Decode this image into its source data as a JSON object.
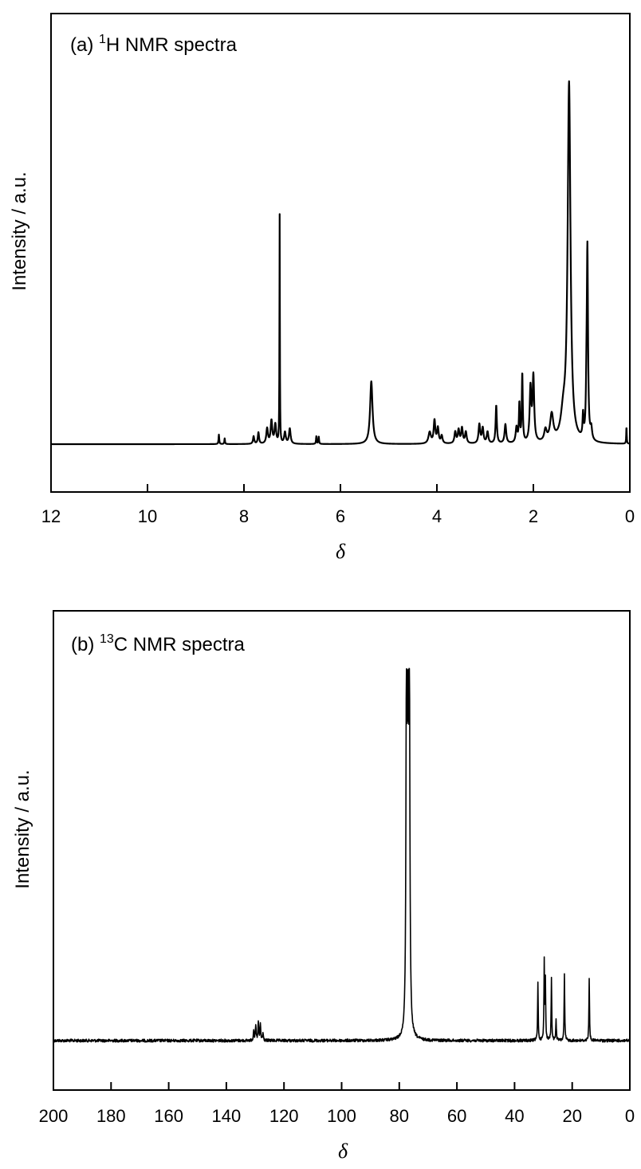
{
  "charts": {
    "h1": {
      "label_prefix": "(a) ",
      "label_sup": "1",
      "label_main": "H NMR spectra",
      "xlabel": "δ",
      "ylabel": "Intensity / a.u."
    },
    "c13": {
      "label_prefix": "(b) ",
      "label_sup": "13",
      "label_main": "C NMR spectra",
      "xlabel": "δ",
      "ylabel": "Intensity / a.u."
    }
  },
  "chart_data": [
    {
      "type": "line",
      "title": "(a) 1H NMR spectra",
      "xlabel": "δ",
      "ylabel": "Intensity / a.u.",
      "xlim": [
        12,
        0
      ],
      "x_reversed": true,
      "xticks": [
        12,
        10,
        8,
        6,
        4,
        2,
        0
      ],
      "y_ticks_shown": false,
      "grid": false,
      "series": [
        {
          "peaks": [
            {
              "x": 8.52,
              "height": 0.025,
              "width": 0.008
            },
            {
              "x": 8.4,
              "height": 0.015,
              "width": 0.008
            },
            {
              "x": 7.8,
              "height": 0.02,
              "width": 0.015
            },
            {
              "x": 7.7,
              "height": 0.03,
              "width": 0.015
            },
            {
              "x": 7.52,
              "height": 0.04,
              "width": 0.02
            },
            {
              "x": 7.43,
              "height": 0.06,
              "width": 0.02
            },
            {
              "x": 7.35,
              "height": 0.05,
              "width": 0.02
            },
            {
              "x": 7.26,
              "height": 0.6,
              "width": 0.005
            },
            {
              "x": 7.15,
              "height": 0.03,
              "width": 0.02
            },
            {
              "x": 7.05,
              "height": 0.04,
              "width": 0.02
            },
            {
              "x": 6.5,
              "height": 0.02,
              "width": 0.008
            },
            {
              "x": 6.45,
              "height": 0.02,
              "width": 0.008
            },
            {
              "x": 5.36,
              "height": 0.165,
              "width": 0.03
            },
            {
              "x": 4.15,
              "height": 0.03,
              "width": 0.03
            },
            {
              "x": 4.05,
              "height": 0.06,
              "width": 0.02
            },
            {
              "x": 3.98,
              "height": 0.04,
              "width": 0.02
            },
            {
              "x": 3.9,
              "height": 0.02,
              "width": 0.02
            },
            {
              "x": 3.62,
              "height": 0.03,
              "width": 0.02
            },
            {
              "x": 3.55,
              "height": 0.035,
              "width": 0.02
            },
            {
              "x": 3.48,
              "height": 0.04,
              "width": 0.02
            },
            {
              "x": 3.4,
              "height": 0.03,
              "width": 0.02
            },
            {
              "x": 3.12,
              "height": 0.05,
              "width": 0.02
            },
            {
              "x": 3.05,
              "height": 0.04,
              "width": 0.02
            },
            {
              "x": 2.95,
              "height": 0.03,
              "width": 0.02
            },
            {
              "x": 2.77,
              "height": 0.1,
              "width": 0.015
            },
            {
              "x": 2.58,
              "height": 0.05,
              "width": 0.02
            },
            {
              "x": 2.35,
              "height": 0.04,
              "width": 0.02
            },
            {
              "x": 2.29,
              "height": 0.1,
              "width": 0.012
            },
            {
              "x": 2.23,
              "height": 0.18,
              "width": 0.012
            },
            {
              "x": 2.06,
              "height": 0.14,
              "width": 0.02
            },
            {
              "x": 2.0,
              "height": 0.17,
              "width": 0.02
            },
            {
              "x": 1.75,
              "height": 0.03,
              "width": 0.03
            },
            {
              "x": 1.62,
              "height": 0.07,
              "width": 0.04
            },
            {
              "x": 1.38,
              "height": 0.06,
              "width": 0.06
            },
            {
              "x": 1.26,
              "height": 0.94,
              "width": 0.035
            },
            {
              "x": 0.97,
              "height": 0.06,
              "width": 0.012
            },
            {
              "x": 0.9,
              "height": 0.08,
              "width": 0.012
            },
            {
              "x": 0.88,
              "height": 0.5,
              "width": 0.015
            },
            {
              "x": 0.8,
              "height": 0.03,
              "width": 0.02
            },
            {
              "x": 0.07,
              "height": 0.045,
              "width": 0.006
            }
          ]
        }
      ]
    },
    {
      "type": "line",
      "title": "(b) 13C NMR spectra",
      "xlabel": "δ",
      "ylabel": "Intensity / a.u.",
      "xlim": [
        200,
        0
      ],
      "x_reversed": true,
      "xticks": [
        200,
        180,
        160,
        140,
        120,
        100,
        80,
        60,
        40,
        20,
        0
      ],
      "y_ticks_shown": false,
      "grid": false,
      "series": [
        {
          "peaks": [
            {
              "x": 130.5,
              "height": 0.03,
              "width": 0.15
            },
            {
              "x": 129.8,
              "height": 0.04,
              "width": 0.15
            },
            {
              "x": 128.9,
              "height": 0.05,
              "width": 0.15
            },
            {
              "x": 128.2,
              "height": 0.045,
              "width": 0.15
            },
            {
              "x": 127.3,
              "height": 0.02,
              "width": 0.15
            },
            {
              "x": 77.5,
              "height": 0.995,
              "width": 0.2
            },
            {
              "x": 77.0,
              "height": 0.975,
              "width": 0.2
            },
            {
              "x": 76.5,
              "height": 0.985,
              "width": 0.2
            },
            {
              "x": 31.9,
              "height": 0.16,
              "width": 0.12
            },
            {
              "x": 29.7,
              "height": 0.21,
              "width": 0.12
            },
            {
              "x": 29.3,
              "height": 0.16,
              "width": 0.12
            },
            {
              "x": 27.2,
              "height": 0.17,
              "width": 0.12
            },
            {
              "x": 25.6,
              "height": 0.06,
              "width": 0.12
            },
            {
              "x": 22.7,
              "height": 0.18,
              "width": 0.12
            },
            {
              "x": 14.1,
              "height": 0.17,
              "width": 0.12
            }
          ]
        }
      ]
    }
  ]
}
